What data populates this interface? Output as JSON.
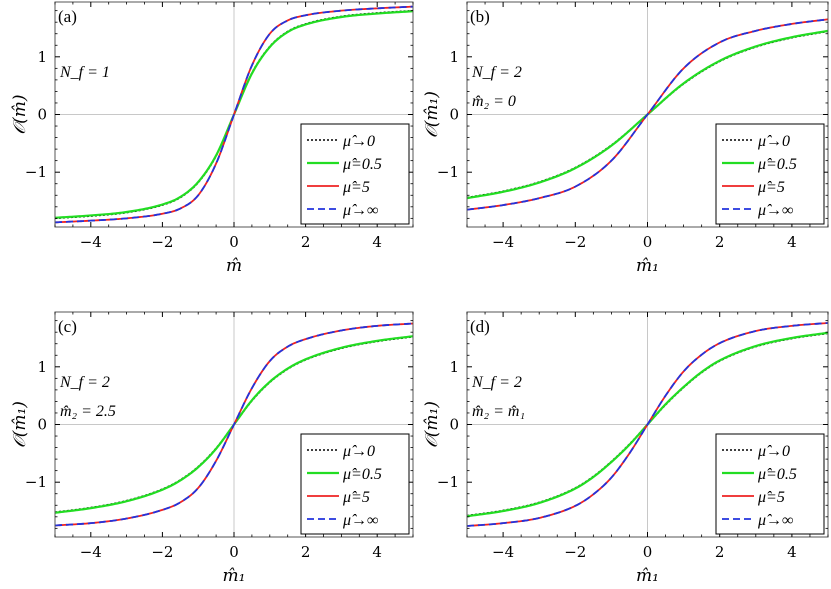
{
  "colors": {
    "mu0": "#000000",
    "mu05": "#22dd22",
    "mu5": "#ee2222",
    "muinf": "#2233dd",
    "frame": "#555555",
    "zeroline": "#c8c8c8"
  },
  "chart_data": [
    {
      "type": "line",
      "panel_label": "(a)",
      "annotations": [
        "N_f = 1"
      ],
      "xlabel": "m̂",
      "ylabel": "𝒪(m̂)",
      "xlim": [
        -5,
        5
      ],
      "ylim": [
        -1.95,
        1.95
      ],
      "x_ticks": [
        -4,
        -2,
        0,
        2,
        4
      ],
      "y_ticks": [
        -1,
        0,
        1
      ],
      "x_tick_labels": [
        "−4",
        "−2",
        "0",
        "2",
        "4"
      ],
      "y_tick_labels": [
        "−1",
        "0",
        "1"
      ],
      "legend": {
        "position": "bottom-right",
        "entries": [
          "μ̂→0",
          "μ̂=0.5",
          "μ̂=5",
          "μ̂→∞"
        ]
      },
      "x": [
        -5,
        -4,
        -3,
        -2,
        -1.5,
        -1,
        -0.5,
        0,
        0.5,
        1,
        1.5,
        2,
        3,
        4,
        5
      ],
      "series": [
        {
          "name": "μ̂→0",
          "style": "dotted",
          "values": [
            -1.8,
            -1.76,
            -1.7,
            -1.57,
            -1.44,
            -1.18,
            -0.72,
            0,
            0.72,
            1.18,
            1.44,
            1.57,
            1.7,
            1.76,
            1.8
          ]
        },
        {
          "name": "μ̂=0.5",
          "style": "solid",
          "values": [
            -1.79,
            -1.75,
            -1.69,
            -1.56,
            -1.43,
            -1.17,
            -0.71,
            0,
            0.71,
            1.17,
            1.43,
            1.56,
            1.69,
            1.75,
            1.79
          ]
        },
        {
          "name": "μ̂=5",
          "style": "solid",
          "values": [
            -1.87,
            -1.84,
            -1.8,
            -1.72,
            -1.63,
            -1.4,
            -0.85,
            0,
            0.85,
            1.4,
            1.63,
            1.72,
            1.8,
            1.84,
            1.87
          ]
        },
        {
          "name": "μ̂→∞",
          "style": "dashed",
          "values": [
            -1.87,
            -1.84,
            -1.8,
            -1.72,
            -1.63,
            -1.4,
            -0.85,
            0,
            0.85,
            1.4,
            1.63,
            1.72,
            1.8,
            1.84,
            1.87
          ]
        }
      ]
    },
    {
      "type": "line",
      "panel_label": "(b)",
      "annotations": [
        "N_f = 2",
        "m̂₂ = 0"
      ],
      "xlabel": "m̂₁",
      "ylabel": "𝒪(m̂₁)",
      "xlim": [
        -5,
        5
      ],
      "ylim": [
        -1.95,
        1.95
      ],
      "x_ticks": [
        -4,
        -2,
        0,
        2,
        4
      ],
      "y_ticks": [
        -1,
        0,
        1
      ],
      "x_tick_labels": [
        "−4",
        "−2",
        "0",
        "2",
        "4"
      ],
      "y_tick_labels": [
        "−1",
        "0",
        "1"
      ],
      "legend": {
        "position": "bottom-right",
        "entries": [
          "μ̂→0",
          "μ̂=0.5",
          "μ̂=5",
          "μ̂→∞"
        ]
      },
      "x": [
        -5,
        -4,
        -3,
        -2,
        -1,
        0,
        1,
        2,
        3,
        4,
        5
      ],
      "series": [
        {
          "name": "μ̂→0",
          "style": "dotted",
          "values": [
            -1.44,
            -1.33,
            -1.17,
            -0.92,
            -0.53,
            0,
            0.53,
            0.92,
            1.17,
            1.33,
            1.44
          ]
        },
        {
          "name": "μ̂=0.5",
          "style": "solid",
          "values": [
            -1.45,
            -1.34,
            -1.18,
            -0.93,
            -0.54,
            0,
            0.54,
            0.93,
            1.18,
            1.34,
            1.45
          ]
        },
        {
          "name": "μ̂=5",
          "style": "solid",
          "values": [
            -1.65,
            -1.57,
            -1.45,
            -1.25,
            -0.8,
            0,
            0.8,
            1.25,
            1.45,
            1.57,
            1.65
          ]
        },
        {
          "name": "μ̂→∞",
          "style": "dashed",
          "values": [
            -1.65,
            -1.57,
            -1.45,
            -1.25,
            -0.8,
            0,
            0.8,
            1.25,
            1.45,
            1.57,
            1.65
          ]
        }
      ]
    },
    {
      "type": "line",
      "panel_label": "(c)",
      "annotations": [
        "N_f = 2",
        "m̂₂ = 2.5"
      ],
      "xlabel": "m̂₁",
      "ylabel": "𝒪(m̂₁)",
      "xlim": [
        -5,
        5
      ],
      "ylim": [
        -1.95,
        1.95
      ],
      "x_ticks": [
        -4,
        -2,
        0,
        2,
        4
      ],
      "y_ticks": [
        -1,
        0,
        1
      ],
      "x_tick_labels": [
        "−4",
        "−2",
        "0",
        "2",
        "4"
      ],
      "y_tick_labels": [
        "−1",
        "0",
        "1"
      ],
      "legend": {
        "position": "bottom-right",
        "entries": [
          "μ̂→0",
          "μ̂=0.5",
          "μ̂=5",
          "μ̂→∞"
        ]
      },
      "x": [
        -5,
        -4,
        -3,
        -2,
        -1.5,
        -1,
        -0.5,
        0,
        0.5,
        1,
        1.5,
        2,
        3,
        4,
        5
      ],
      "series": [
        {
          "name": "μ̂→0",
          "style": "dotted",
          "values": [
            -1.52,
            -1.44,
            -1.32,
            -1.12,
            -0.96,
            -0.73,
            -0.41,
            0,
            0.41,
            0.73,
            0.96,
            1.12,
            1.32,
            1.44,
            1.52
          ]
        },
        {
          "name": "μ̂=0.5",
          "style": "solid",
          "values": [
            -1.53,
            -1.45,
            -1.33,
            -1.13,
            -0.97,
            -0.74,
            -0.42,
            0,
            0.42,
            0.74,
            0.97,
            1.13,
            1.33,
            1.45,
            1.53
          ]
        },
        {
          "name": "μ̂=5",
          "style": "solid",
          "values": [
            -1.75,
            -1.71,
            -1.63,
            -1.48,
            -1.35,
            -1.1,
            -0.63,
            0,
            0.63,
            1.1,
            1.35,
            1.48,
            1.63,
            1.71,
            1.75
          ]
        },
        {
          "name": "μ̂→∞",
          "style": "dashed",
          "values": [
            -1.75,
            -1.71,
            -1.63,
            -1.48,
            -1.35,
            -1.1,
            -0.63,
            0,
            0.63,
            1.1,
            1.35,
            1.48,
            1.63,
            1.71,
            1.75
          ]
        }
      ]
    },
    {
      "type": "line",
      "panel_label": "(d)",
      "annotations": [
        "N_f = 2",
        "m̂₂ = m̂₁"
      ],
      "xlabel": "m̂₁",
      "ylabel": "𝒪(m̂₁)",
      "xlim": [
        -5,
        5
      ],
      "ylim": [
        -1.95,
        1.95
      ],
      "x_ticks": [
        -4,
        -2,
        0,
        2,
        4
      ],
      "y_ticks": [
        -1,
        0,
        1
      ],
      "x_tick_labels": [
        "−4",
        "−2",
        "0",
        "2",
        "4"
      ],
      "y_tick_labels": [
        "−1",
        "0",
        "1"
      ],
      "legend": {
        "position": "bottom-right",
        "entries": [
          "μ̂→0",
          "μ̂=0.5",
          "μ̂=5",
          "μ̂→∞"
        ]
      },
      "x": [
        -5,
        -4,
        -3,
        -2,
        -1.5,
        -1,
        -0.5,
        0,
        0.5,
        1,
        1.5,
        2,
        3,
        4,
        5
      ],
      "series": [
        {
          "name": "μ̂→0",
          "style": "dotted",
          "values": [
            -1.58,
            -1.49,
            -1.35,
            -1.1,
            -0.9,
            -0.64,
            -0.34,
            0,
            0.34,
            0.64,
            0.9,
            1.1,
            1.35,
            1.49,
            1.58
          ]
        },
        {
          "name": "μ̂=0.5",
          "style": "solid",
          "values": [
            -1.59,
            -1.5,
            -1.36,
            -1.11,
            -0.91,
            -0.65,
            -0.35,
            0,
            0.35,
            0.65,
            0.91,
            1.11,
            1.36,
            1.5,
            1.59
          ]
        },
        {
          "name": "μ̂=5",
          "style": "solid",
          "values": [
            -1.76,
            -1.71,
            -1.62,
            -1.41,
            -1.21,
            -0.92,
            -0.5,
            0,
            0.5,
            0.92,
            1.21,
            1.41,
            1.62,
            1.71,
            1.76
          ]
        },
        {
          "name": "μ̂→∞",
          "style": "dashed",
          "values": [
            -1.76,
            -1.71,
            -1.62,
            -1.41,
            -1.21,
            -0.92,
            -0.5,
            0,
            0.5,
            0.92,
            1.21,
            1.41,
            1.62,
            1.71,
            1.76
          ]
        }
      ]
    }
  ]
}
